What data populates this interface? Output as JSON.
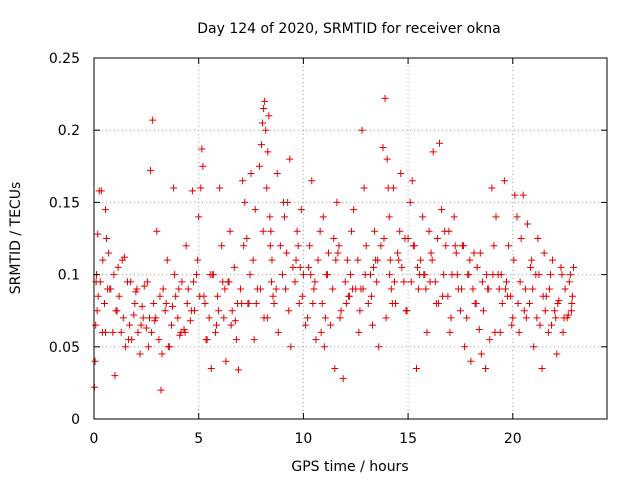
{
  "chart_data": {
    "type": "scatter",
    "title": "Day 124 of 2020, SRMTID for receiver okna",
    "xlabel": "GPS time / hours",
    "ylabel": "SRMTID / TECUs",
    "xlim": [
      0,
      24.5
    ],
    "ylim": [
      0,
      0.25
    ],
    "xticks": [
      0,
      5,
      10,
      15,
      20
    ],
    "yticks": [
      0,
      0.05,
      0.1,
      0.15,
      0.2,
      0.25
    ],
    "xtick_labels": [
      "0",
      "5",
      "10",
      "15",
      "20"
    ],
    "ytick_labels": [
      "0",
      "0.05",
      "0.1",
      "0.15",
      "0.2",
      "0.25"
    ],
    "grid": true,
    "marker": "+",
    "color": "#e00000",
    "series": [
      {
        "name": "SRMTID",
        "x": [
          0.02,
          0.05,
          0.08,
          0.12,
          0.18,
          0.25,
          0.3,
          0.35,
          0.42,
          0.5,
          0.55,
          0.6,
          0.7,
          0.8,
          0.9,
          1.0,
          1.1,
          1.2,
          1.3,
          1.4,
          1.5,
          1.6,
          1.7,
          1.8,
          1.9,
          2.0,
          2.1,
          2.2,
          2.3,
          2.4,
          2.5,
          2.6,
          2.7,
          2.8,
          2.85,
          2.9,
          3.0,
          3.1,
          3.2,
          3.3,
          3.4,
          3.5,
          3.6,
          3.7,
          3.8,
          3.9,
          4.0,
          4.1,
          4.2,
          4.3,
          4.4,
          4.5,
          4.6,
          4.7,
          4.8,
          4.9,
          5.0,
          5.1,
          5.15,
          5.2,
          5.3,
          5.4,
          5.5,
          5.6,
          5.7,
          5.8,
          5.9,
          6.0,
          6.1,
          6.2,
          6.3,
          6.4,
          6.5,
          6.6,
          6.7,
          6.8,
          6.9,
          7.0,
          7.1,
          7.2,
          7.3,
          7.4,
          7.5,
          7.6,
          7.7,
          7.8,
          7.9,
          8.0,
          8.05,
          8.1,
          8.15,
          8.2,
          8.25,
          8.3,
          8.35,
          8.4,
          8.45,
          8.5,
          8.6,
          8.7,
          8.8,
          8.9,
          9.0,
          9.1,
          9.2,
          9.3,
          9.4,
          9.5,
          9.6,
          9.7,
          9.8,
          9.9,
          10.0,
          10.1,
          10.2,
          10.3,
          10.4,
          10.5,
          10.6,
          10.7,
          10.8,
          10.9,
          11.0,
          11.1,
          11.2,
          11.3,
          11.4,
          11.5,
          11.6,
          11.7,
          11.8,
          11.9,
          12.0,
          12.1,
          12.2,
          12.3,
          12.4,
          12.5,
          12.6,
          12.7,
          12.8,
          12.9,
          13.0,
          13.1,
          13.2,
          13.3,
          13.4,
          13.5,
          13.6,
          13.7,
          13.8,
          13.9,
          14.0,
          14.05,
          14.1,
          14.15,
          14.2,
          14.3,
          14.4,
          14.5,
          14.6,
          14.7,
          14.8,
          14.9,
          15.0,
          15.1,
          15.2,
          15.3,
          15.4,
          15.5,
          15.6,
          15.7,
          15.8,
          15.9,
          16.0,
          16.1,
          16.2,
          16.3,
          16.4,
          16.5,
          16.6,
          16.7,
          16.8,
          16.9,
          17.0,
          17.1,
          17.2,
          17.3,
          17.4,
          17.5,
          17.6,
          17.7,
          17.8,
          17.9,
          18.0,
          18.1,
          18.2,
          18.3,
          18.4,
          18.5,
          18.6,
          18.7,
          18.8,
          18.9,
          19.0,
          19.1,
          19.2,
          19.3,
          19.4,
          19.5,
          19.6,
          19.7,
          19.8,
          19.9,
          20.0,
          20.1,
          20.2,
          20.3,
          20.4,
          20.5,
          20.6,
          20.7,
          20.8,
          20.9,
          21.0,
          21.1,
          21.2,
          21.3,
          21.4,
          21.5,
          21.6,
          21.7,
          21.8,
          21.9,
          22.0,
          22.1,
          22.2,
          22.3,
          22.4,
          22.5,
          22.6,
          22.7,
          22.8,
          22.85,
          22.9,
          0.1,
          0.4,
          0.75,
          1.05,
          1.35,
          1.65,
          1.95,
          2.25,
          2.55,
          2.95,
          3.25,
          3.55,
          3.85,
          4.15,
          4.45,
          4.75,
          5.05,
          5.35,
          5.65,
          5.95,
          6.25,
          6.55,
          6.85,
          7.15,
          7.45,
          7.75,
          8.08,
          8.28,
          8.48,
          8.75,
          9.05,
          9.35,
          9.65,
          9.95,
          10.25,
          10.55,
          10.85,
          11.15,
          11.45,
          11.75,
          12.05,
          12.35,
          12.65,
          12.95,
          13.25,
          13.55,
          13.85,
          14.12,
          14.35,
          14.65,
          14.95,
          15.25,
          15.55,
          15.85,
          16.15,
          16.45,
          16.75,
          17.05,
          17.35,
          17.65,
          17.95,
          18.25,
          18.55,
          18.85,
          19.15,
          19.45,
          19.75,
          20.05,
          20.35,
          20.65,
          20.95,
          21.25,
          21.55,
          21.85,
          22.15,
          22.45,
          22.75,
          0.2,
          0.65,
          1.15,
          1.75,
          2.35,
          2.75,
          3.45,
          4.05,
          4.65,
          5.25,
          5.85,
          6.45,
          7.05,
          7.65,
          8.12,
          8.55,
          9.15,
          9.75,
          10.35,
          10.95,
          11.55,
          12.15,
          12.75,
          13.35,
          13.95,
          14.55,
          15.15,
          15.75,
          16.35,
          16.95,
          17.55,
          18.15,
          18.75,
          19.35,
          19.95,
          20.55,
          21.15,
          21.75,
          22.35,
          22.82,
          0.15,
          0.55,
          0.95,
          1.45,
          2.05,
          2.65,
          3.15,
          3.75,
          4.35,
          4.95,
          5.55,
          6.15,
          6.75,
          7.35,
          7.95,
          8.42,
          9.25,
          9.85,
          10.45,
          11.05,
          11.65,
          12.25,
          12.85,
          13.45,
          14.25,
          14.85,
          15.45,
          16.05,
          16.65,
          17.25,
          17.85,
          18.45,
          19.05,
          19.65,
          20.25,
          20.85,
          21.45,
          22.05,
          22.65
        ],
        "y": [
          0.022,
          0.04,
          0.065,
          0.1,
          0.128,
          0.158,
          0.095,
          0.158,
          0.11,
          0.08,
          0.145,
          0.125,
          0.115,
          0.09,
          0.06,
          0.03,
          0.075,
          0.085,
          0.06,
          0.07,
          0.05,
          0.095,
          0.065,
          0.055,
          0.072,
          0.088,
          0.06,
          0.045,
          0.078,
          0.092,
          0.063,
          0.05,
          0.172,
          0.207,
          0.08,
          0.068,
          0.13,
          0.055,
          0.02,
          0.09,
          0.075,
          0.11,
          0.05,
          0.065,
          0.16,
          0.085,
          0.07,
          0.058,
          0.095,
          0.062,
          0.12,
          0.09,
          0.068,
          0.158,
          0.075,
          0.1,
          0.14,
          0.16,
          0.187,
          0.175,
          0.08,
          0.055,
          0.07,
          0.035,
          0.1,
          0.06,
          0.085,
          0.16,
          0.12,
          0.07,
          0.04,
          0.095,
          0.13,
          0.075,
          0.105,
          0.055,
          0.034,
          0.09,
          0.165,
          0.15,
          0.125,
          0.08,
          0.17,
          0.11,
          0.145,
          0.09,
          0.175,
          0.19,
          0.205,
          0.215,
          0.22,
          0.2,
          0.16,
          0.185,
          0.21,
          0.14,
          0.13,
          0.11,
          0.08,
          0.09,
          0.06,
          0.12,
          0.1,
          0.14,
          0.115,
          0.075,
          0.05,
          0.105,
          0.095,
          0.13,
          0.08,
          0.145,
          0.1,
          0.065,
          0.07,
          0.12,
          0.165,
          0.09,
          0.055,
          0.11,
          0.13,
          0.08,
          0.05,
          0.1,
          0.115,
          0.065,
          0.09,
          0.035,
          0.15,
          0.12,
          0.075,
          0.028,
          0.095,
          0.11,
          0.085,
          0.13,
          0.145,
          0.09,
          0.11,
          0.075,
          0.2,
          0.16,
          0.12,
          0.08,
          0.1,
          0.065,
          0.13,
          0.095,
          0.05,
          0.12,
          0.188,
          0.222,
          0.18,
          0.16,
          0.14,
          0.11,
          0.09,
          0.16,
          0.08,
          0.115,
          0.13,
          0.105,
          0.095,
          0.075,
          0.125,
          0.15,
          0.165,
          0.12,
          0.035,
          0.09,
          0.11,
          0.14,
          0.1,
          0.06,
          0.13,
          0.115,
          0.185,
          0.095,
          0.125,
          0.191,
          0.145,
          0.1,
          0.12,
          0.085,
          0.06,
          0.1,
          0.14,
          0.115,
          0.09,
          0.075,
          0.12,
          0.05,
          0.07,
          0.1,
          0.04,
          0.09,
          0.08,
          0.105,
          0.062,
          0.045,
          0.075,
          0.035,
          0.09,
          0.055,
          0.16,
          0.12,
          0.14,
          0.1,
          0.06,
          0.08,
          0.165,
          0.095,
          0.12,
          0.085,
          0.07,
          0.155,
          0.14,
          0.06,
          0.125,
          0.155,
          0.09,
          0.135,
          0.08,
          0.11,
          0.05,
          0.1,
          0.125,
          0.065,
          0.035,
          0.115,
          0.085,
          0.06,
          0.1,
          0.11,
          0.075,
          0.045,
          0.082,
          0.105,
          0.06,
          0.09,
          0.07,
          0.095,
          0.075,
          0.085,
          0.105,
          0.095,
          0.06,
          0.09,
          0.075,
          0.11,
          0.055,
          0.08,
          0.065,
          0.095,
          0.07,
          0.045,
          0.05,
          0.1,
          0.06,
          0.08,
          0.095,
          0.085,
          0.055,
          0.1,
          0.075,
          0.09,
          0.065,
          0.08,
          0.12,
          0.1,
          0.08,
          0.13,
          0.07,
          0.095,
          0.17,
          0.15,
          0.18,
          0.11,
          0.085,
          0.105,
          0.095,
          0.06,
          0.1,
          0.125,
          0.07,
          0.08,
          0.09,
          0.06,
          0.1,
          0.085,
          0.11,
          0.125,
          0.1,
          0.095,
          0.17,
          0.075,
          0.12,
          0.1,
          0.09,
          0.11,
          0.08,
          0.13,
          0.07,
          0.1,
          0.12,
          0.11,
          0.08,
          0.095,
          0.09,
          0.06,
          0.1,
          0.085,
          0.11,
          0.095,
          0.07,
          0.09,
          0.1,
          0.075,
          0.065,
          0.08,
          0.07,
          0.1,
          0.085,
          0.09,
          0.105,
          0.095,
          0.07,
          0.06,
          0.08,
          0.09,
          0.075,
          0.085,
          0.065,
          0.095,
          0.08,
          0.055,
          0.07,
          0.085,
          0.09,
          0.12,
          0.1,
          0.14,
          0.11,
          0.085,
          0.09,
          0.105,
          0.07,
          0.11,
          0.095,
          0.1,
          0.08,
          0.13,
          0.09,
          0.115,
          0.1,
          0.09,
          0.065,
          0.075,
          0.07,
          0.09,
          0.1,
          0.08,
          0.075,
          0.06,
          0.1,
          0.112,
          0.09,
          0.07,
          0.085,
          0.078,
          0.06,
          0.11,
          0.1,
          0.095,
          0.068,
          0.08,
          0.09,
          0.12,
          0.15,
          0.105,
          0.08,
          0.07,
          0.115,
          0.1,
          0.09,
          0.11,
          0.08,
          0.125,
          0.105,
          0.095,
          0.085,
          0.12,
          0.1,
          0.115,
          0.1,
          0.09,
          0.08,
          0.105,
          0.085,
          0.07,
          0.072
        ]
      }
    ]
  }
}
